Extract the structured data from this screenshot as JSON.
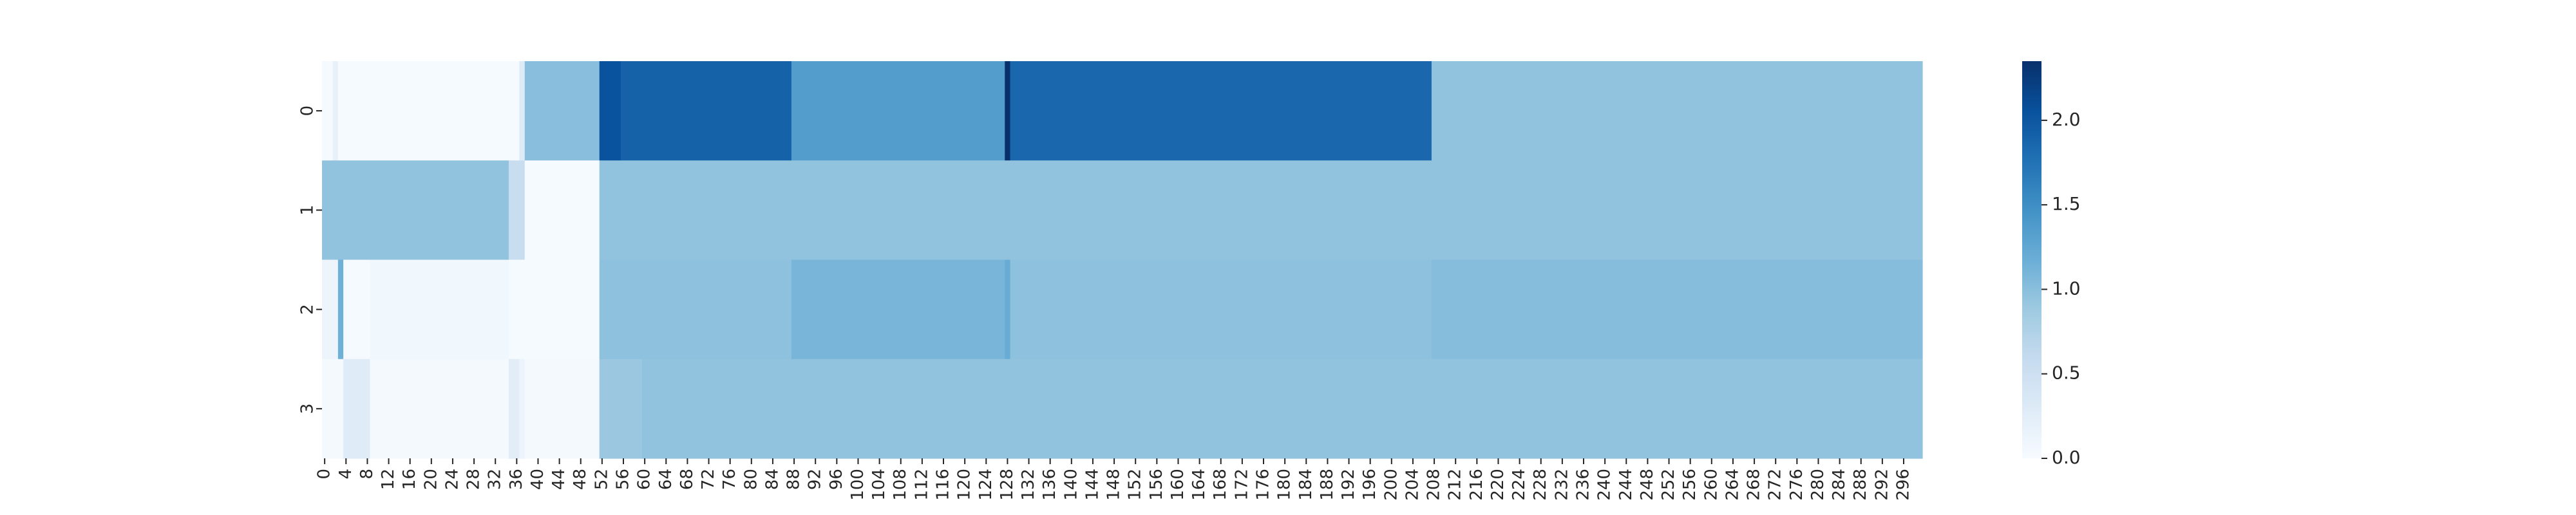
{
  "chart_data": {
    "type": "heatmap",
    "colormap": "Blues",
    "value_range": [
      0,
      2.35
    ],
    "x_tick_labels": [
      "0",
      "4",
      "8",
      "12",
      "16",
      "20",
      "24",
      "28",
      "32",
      "36",
      "40",
      "44",
      "48",
      "52",
      "56",
      "60",
      "64",
      "68",
      "72",
      "76",
      "80",
      "84",
      "88",
      "92",
      "96",
      "100",
      "104",
      "108",
      "112",
      "116",
      "120",
      "124",
      "128",
      "132",
      "136",
      "140",
      "144",
      "148",
      "152",
      "156",
      "160",
      "164",
      "168",
      "172",
      "176",
      "180",
      "184",
      "188",
      "192",
      "196",
      "200",
      "204",
      "208",
      "212",
      "216",
      "220",
      "224",
      "228",
      "232",
      "236",
      "240",
      "244",
      "248",
      "252",
      "256",
      "260",
      "264",
      "268",
      "272",
      "276",
      "280",
      "284",
      "288",
      "292",
      "296"
    ],
    "y_tick_labels": [
      "0",
      "1",
      "2",
      "3"
    ],
    "colorbar_ticks": [
      "0.0",
      "0.5",
      "1.0",
      "1.5",
      "2.0"
    ],
    "rows": [
      {
        "label": "0",
        "segments": [
          [
            0,
            2,
            0.02
          ],
          [
            2,
            3,
            0.18
          ],
          [
            3,
            37,
            0.02
          ],
          [
            37,
            38,
            0.3
          ],
          [
            38,
            52,
            1.0
          ],
          [
            52,
            56,
            2.05
          ],
          [
            56,
            88,
            1.9
          ],
          [
            88,
            128,
            1.35
          ],
          [
            128,
            129,
            2.35
          ],
          [
            129,
            208,
            1.85
          ],
          [
            208,
            300,
            0.95
          ]
        ]
      },
      {
        "label": "1",
        "segments": [
          [
            0,
            35,
            0.95
          ],
          [
            35,
            38,
            0.55
          ],
          [
            38,
            52,
            0.02
          ],
          [
            52,
            300,
            0.95
          ]
        ]
      },
      {
        "label": "2",
        "segments": [
          [
            0,
            3,
            0.12
          ],
          [
            3,
            4,
            1.15
          ],
          [
            4,
            5,
            0.03
          ],
          [
            5,
            9,
            0.02
          ],
          [
            9,
            35,
            0.08
          ],
          [
            35,
            52,
            0.02
          ],
          [
            52,
            88,
            0.98
          ],
          [
            88,
            128,
            1.1
          ],
          [
            128,
            129,
            1.2
          ],
          [
            129,
            208,
            0.98
          ],
          [
            208,
            300,
            1.02
          ]
        ]
      },
      {
        "label": "3",
        "segments": [
          [
            0,
            4,
            0.03
          ],
          [
            4,
            9,
            0.28
          ],
          [
            9,
            35,
            0.04
          ],
          [
            35,
            37,
            0.25
          ],
          [
            37,
            38,
            0.12
          ],
          [
            38,
            52,
            0.03
          ],
          [
            52,
            60,
            0.9
          ],
          [
            60,
            300,
            0.95
          ]
        ]
      }
    ]
  }
}
